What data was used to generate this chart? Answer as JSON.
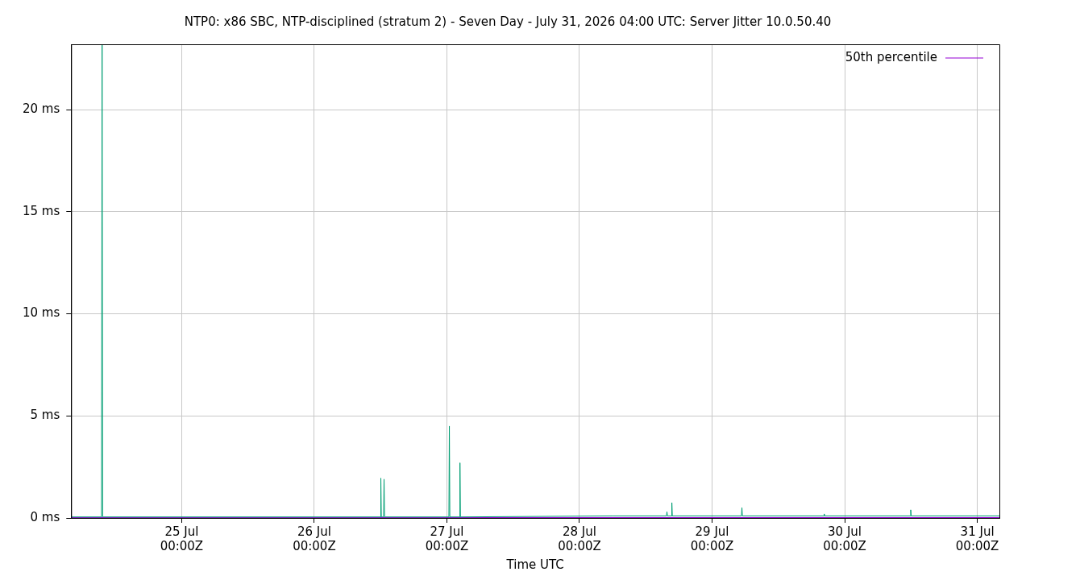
{
  "chart_data": {
    "type": "line",
    "title": "NTP0: x86 SBC, NTP-disciplined (stratum 2) - Seven Day - July 31, 2026 04:00 UTC: Server Jitter 10.0.50.40",
    "xlabel": "Time UTC",
    "xlim": [
      "2026-07-24T04:00",
      "2026-07-31T04:00"
    ],
    "xticks": [
      {
        "value": "2026-07-25T00:00",
        "label": "25 Jul\n00:00Z"
      },
      {
        "value": "2026-07-26T00:00",
        "label": "26 Jul\n00:00Z"
      },
      {
        "value": "2026-07-27T00:00",
        "label": "27 Jul\n00:00Z"
      },
      {
        "value": "2026-07-28T00:00",
        "label": "28 Jul\n00:00Z"
      },
      {
        "value": "2026-07-29T00:00",
        "label": "29 Jul\n00:00Z"
      },
      {
        "value": "2026-07-30T00:00",
        "label": "30 Jul\n00:00Z"
      },
      {
        "value": "2026-07-31T00:00",
        "label": "31 Jul\n00:00Z"
      }
    ],
    "ylim": [
      0,
      23.2
    ],
    "yticks": [
      {
        "value": 0,
        "label": "0 ms"
      },
      {
        "value": 5,
        "label": "5 ms"
      },
      {
        "value": 10,
        "label": "10 ms"
      },
      {
        "value": 15,
        "label": "15 ms"
      },
      {
        "value": 20,
        "label": "20 ms"
      }
    ],
    "grid": true,
    "legend": "top right",
    "marker": "none",
    "line_style": "solid",
    "series": [
      {
        "name": "50th percentile",
        "color": "#9400d3",
        "x": [
          "2026-07-24T04:00",
          "2026-07-26T00:00",
          "2026-07-28T00:00",
          "2026-07-30T00:00",
          "2026-07-31T04:00"
        ],
        "values": [
          0.02,
          0.02,
          0.02,
          0.02,
          0.02
        ]
      },
      {
        "color": "#009e73",
        "x": [
          "2026-07-24T04:00",
          "2026-07-24T09:30",
          "2026-07-24T09:36",
          "2026-07-24T09:42",
          "2026-07-26T12:00",
          "2026-07-26T12:03",
          "2026-07-26T12:08",
          "2026-07-26T12:33",
          "2026-07-26T12:38",
          "2026-07-26T12:43",
          "2026-07-27T00:22",
          "2026-07-27T00:27",
          "2026-07-27T00:32",
          "2026-07-27T02:17",
          "2026-07-27T02:22",
          "2026-07-27T02:27",
          "2026-07-28T06:00",
          "2026-07-28T15:45",
          "2026-07-28T15:50",
          "2026-07-28T15:55",
          "2026-07-28T16:38",
          "2026-07-28T16:43",
          "2026-07-28T16:48",
          "2026-07-29T05:19",
          "2026-07-29T05:24",
          "2026-07-29T05:29",
          "2026-07-29T20:13",
          "2026-07-29T20:18",
          "2026-07-29T20:23",
          "2026-07-30T11:52",
          "2026-07-30T11:57",
          "2026-07-30T12:02",
          "2026-07-31T04:00"
        ],
        "values": [
          0.05,
          0.05,
          23.2,
          0.05,
          0.05,
          1.95,
          0.05,
          0.05,
          1.9,
          0.05,
          0.05,
          4.5,
          0.05,
          0.05,
          2.7,
          0.05,
          0.1,
          0.1,
          0.3,
          0.1,
          0.1,
          0.75,
          0.1,
          0.1,
          0.5,
          0.1,
          0.1,
          0.2,
          0.1,
          0.1,
          0.4,
          0.1,
          0.1
        ]
      }
    ]
  }
}
